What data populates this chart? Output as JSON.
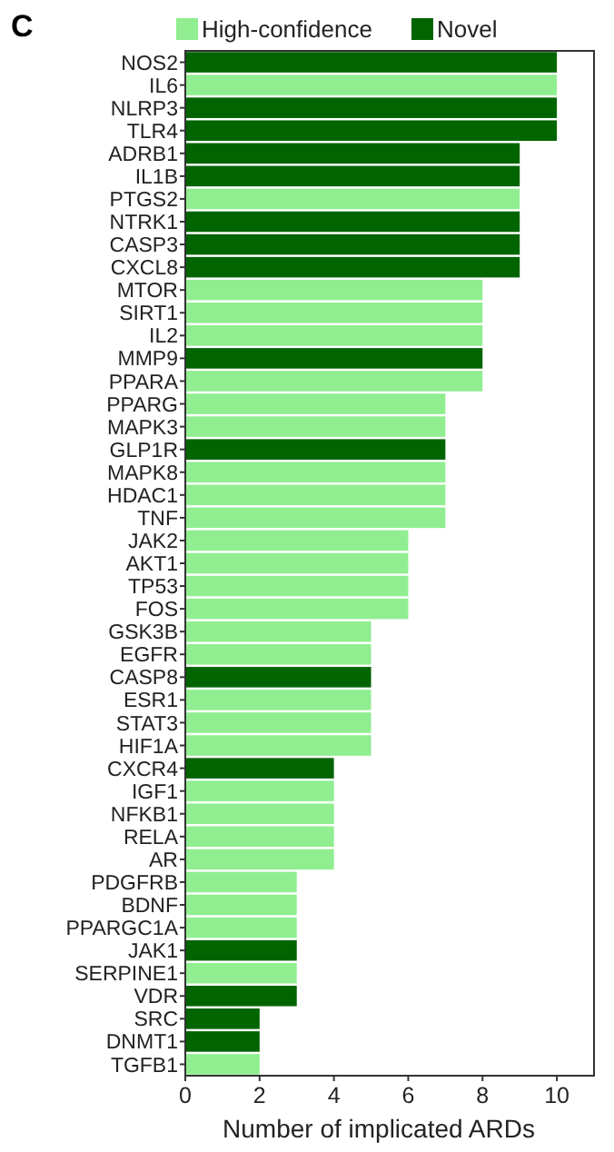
{
  "chart_data": {
    "type": "bar",
    "orientation": "horizontal",
    "title": "C",
    "xlabel": "Number of implicated ARDs",
    "categories": [
      "NOS2",
      "IL6",
      "NLRP3",
      "TLR4",
      "ADRB1",
      "IL1B",
      "PTGS2",
      "NTRK1",
      "CASP3",
      "CXCL8",
      "MTOR",
      "SIRT1",
      "IL2",
      "MMP9",
      "PPARA",
      "PPARG",
      "MAPK3",
      "GLP1R",
      "MAPK8",
      "HDAC1",
      "TNF",
      "JAK2",
      "AKT1",
      "TP53",
      "FOS",
      "GSK3B",
      "EGFR",
      "CASP8",
      "ESR1",
      "STAT3",
      "HIF1A",
      "CXCR4",
      "IGF1",
      "NFKB1",
      "RELA",
      "AR",
      "PDGFRB",
      "BDNF",
      "PPARGC1A",
      "JAK1",
      "SERPINE1",
      "VDR",
      "SRC",
      "DNMT1",
      "TGFB1"
    ],
    "series": [
      {
        "name": "High-confidence",
        "color": "#90ee90",
        "values": [
          null,
          10,
          null,
          null,
          null,
          null,
          9,
          null,
          null,
          null,
          8,
          8,
          8,
          null,
          8,
          7,
          7,
          null,
          7,
          7,
          7,
          6,
          6,
          6,
          6,
          5,
          5,
          null,
          5,
          5,
          5,
          null,
          4,
          4,
          4,
          4,
          3,
          3,
          3,
          null,
          3,
          null,
          null,
          null,
          2
        ]
      },
      {
        "name": "Novel",
        "color": "#006400",
        "values": [
          10,
          null,
          10,
          10,
          9,
          9,
          null,
          9,
          9,
          9,
          null,
          null,
          null,
          8,
          null,
          null,
          null,
          7,
          null,
          null,
          null,
          null,
          null,
          null,
          null,
          null,
          null,
          5,
          null,
          null,
          null,
          4,
          null,
          null,
          null,
          null,
          null,
          null,
          null,
          3,
          null,
          3,
          2,
          2,
          null
        ]
      }
    ],
    "xlim": [
      0,
      11
    ],
    "xticks": [
      0,
      2,
      4,
      6,
      8,
      10
    ],
    "grid": false,
    "legend": "top"
  }
}
